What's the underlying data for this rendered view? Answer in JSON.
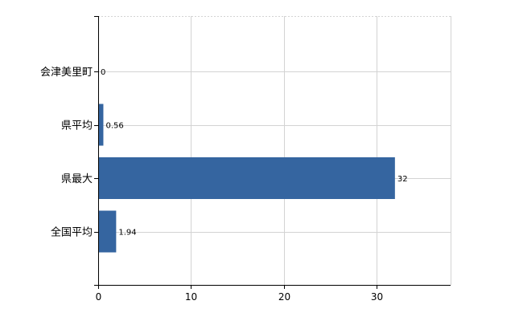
{
  "chart_data": {
    "type": "bar",
    "orientation": "horizontal",
    "categories": [
      "会津美里町",
      "県平均",
      "県最大",
      "全国平均"
    ],
    "values": [
      0,
      0.56,
      32,
      1.94
    ],
    "value_labels": [
      "0",
      "0.56",
      "32",
      "1.94"
    ],
    "xlim": [
      0,
      38
    ],
    "xticks": [
      0,
      10,
      20,
      30
    ],
    "xtick_labels": [
      "0",
      "10",
      "20",
      "30"
    ],
    "grid": true,
    "bar_color": "#3565a0",
    "grid_color": "#d3d3d3"
  }
}
